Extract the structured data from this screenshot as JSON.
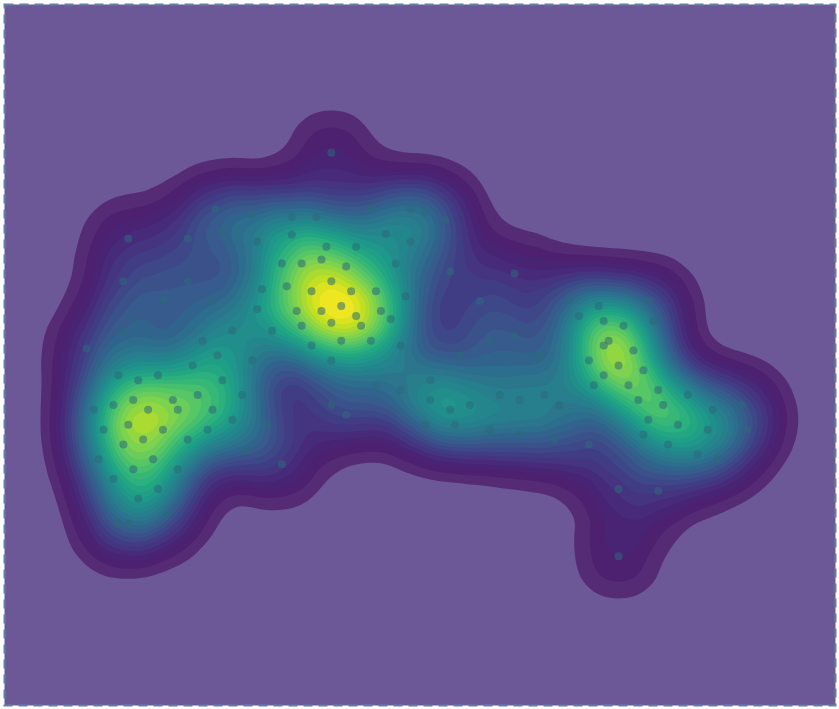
{
  "chart_data": {
    "type": "density_scatter",
    "xlim": [
      0,
      839
    ],
    "ylim": [
      0,
      709
    ],
    "tick_labels": false,
    "grid": false,
    "x": [
      330,
      620,
      213,
      250,
      290,
      315,
      370,
      410,
      425,
      445,
      125,
      185,
      220,
      255,
      290,
      325,
      355,
      385,
      410,
      280,
      300,
      320,
      345,
      395,
      450,
      260,
      285,
      310,
      330,
      350,
      375,
      405,
      295,
      320,
      340,
      355,
      380,
      300,
      330,
      360,
      390,
      340,
      370,
      400,
      310,
      330,
      270,
      480,
      515,
      255,
      160,
      185,
      210,
      230,
      200,
      215,
      190,
      220,
      195,
      175,
      210,
      240,
      230,
      205,
      185,
      250,
      265,
      245,
      280,
      120,
      130,
      120,
      83,
      115,
      135,
      155,
      110,
      130,
      145,
      125,
      140,
      160,
      120,
      100,
      150,
      130,
      110,
      155,
      135,
      165,
      115,
      125,
      90,
      170,
      175,
      95,
      430,
      460,
      490,
      515,
      540,
      430,
      450,
      470,
      500,
      520,
      545,
      560,
      425,
      455,
      490,
      520,
      555,
      590,
      330,
      345,
      375,
      400,
      570,
      600,
      650,
      580,
      605,
      625,
      655,
      610,
      635,
      590,
      620,
      645,
      605,
      630,
      660,
      640,
      665,
      690,
      715,
      745,
      650,
      680,
      710,
      750,
      645,
      670,
      700,
      720,
      620,
      660,
      605,
      595
    ],
    "y": [
      150,
      558,
      207,
      212,
      215,
      215,
      207,
      207,
      210,
      218,
      237,
      237,
      228,
      240,
      233,
      245,
      245,
      232,
      240,
      262,
      262,
      258,
      265,
      262,
      270,
      288,
      285,
      290,
      280,
      290,
      290,
      295,
      310,
      310,
      305,
      315,
      310,
      325,
      322,
      325,
      318,
      340,
      340,
      345,
      345,
      360,
      330,
      300,
      272,
      308,
      298,
      280,
      300,
      330,
      340,
      355,
      365,
      380,
      395,
      410,
      410,
      395,
      420,
      430,
      440,
      360,
      425,
      450,
      465,
      280,
      320,
      330,
      348,
      375,
      380,
      375,
      405,
      400,
      410,
      425,
      440,
      430,
      445,
      430,
      460,
      470,
      480,
      490,
      500,
      515,
      525,
      525,
      410,
      400,
      470,
      460,
      380,
      355,
      340,
      335,
      355,
      400,
      410,
      405,
      395,
      400,
      395,
      405,
      425,
      425,
      430,
      435,
      440,
      445,
      405,
      415,
      385,
      390,
      298,
      305,
      300,
      315,
      320,
      325,
      320,
      340,
      350,
      360,
      365,
      370,
      375,
      385,
      390,
      400,
      405,
      395,
      410,
      405,
      420,
      425,
      430,
      430,
      435,
      445,
      455,
      460,
      490,
      492,
      345,
      385
    ]
  }
}
